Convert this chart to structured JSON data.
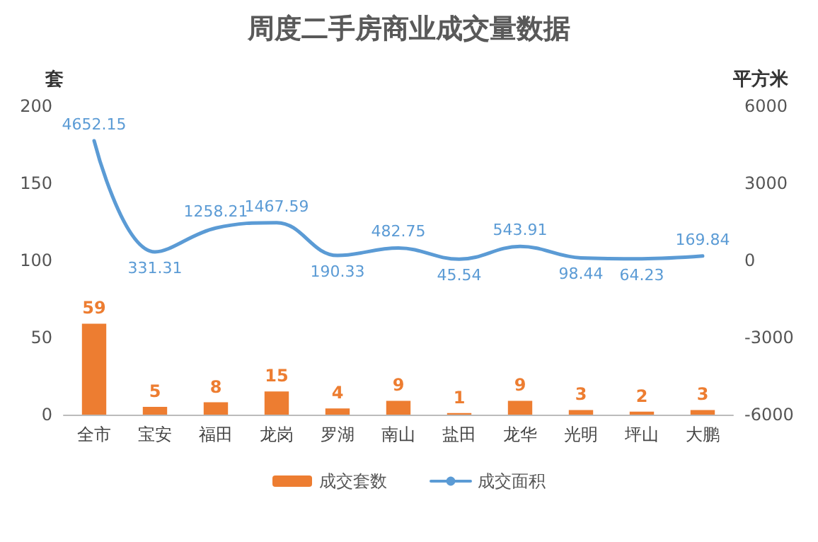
{
  "chart_data": {
    "type": "bar",
    "title": "周度二手房商业成交量数据",
    "ylabel": "套",
    "y2label": "平方米",
    "categories": [
      "全市",
      "宝安",
      "福田",
      "龙岗",
      "罗湖",
      "南山",
      "盐田",
      "龙华",
      "光明",
      "坪山",
      "大鹏"
    ],
    "series": [
      {
        "name": "成交套数",
        "color": "#ed7d31",
        "values": [
          59,
          5,
          8,
          15,
          4,
          9,
          1,
          9,
          3,
          2,
          3
        ]
      },
      {
        "name": "成交面积",
        "type": "line",
        "axis": "y2",
        "color": "#5b9bd5",
        "values": [
          4652.15,
          331.31,
          1258.21,
          1467.59,
          190.33,
          482.75,
          45.54,
          543.91,
          98.44,
          64.23,
          169.84
        ]
      }
    ],
    "ylim": [
      0,
      200
    ],
    "yticks": [
      0,
      50,
      100,
      150,
      200
    ],
    "y2lim": [
      -6000,
      6000
    ],
    "y2ticks": [
      -6000,
      -3000,
      0,
      3000,
      6000
    ],
    "data_labels": true,
    "legend": "bottom",
    "marker": "none",
    "line_style": "solid"
  }
}
